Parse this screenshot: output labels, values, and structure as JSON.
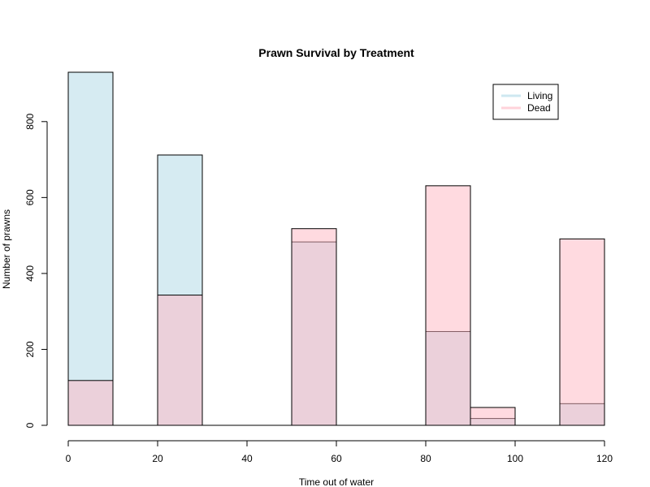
{
  "chart_data": {
    "type": "bar",
    "title": "Prawn Survival by Treatment",
    "xlabel": "Time out of water",
    "ylabel": "Number of prawns",
    "xlim": [
      0,
      120
    ],
    "ylim": [
      0,
      930
    ],
    "x_ticks": [
      0,
      20,
      40,
      60,
      80,
      100,
      120
    ],
    "y_ticks": [
      0,
      200,
      400,
      600,
      800
    ],
    "grid": false,
    "legend_position": "top-right",
    "bin_edges": [
      0,
      10,
      20,
      30,
      40,
      50,
      60,
      70,
      80,
      90,
      100,
      110,
      120
    ],
    "series": [
      {
        "name": "Living",
        "color": "#add8e6",
        "values": [
          930,
          0,
          712,
          0,
          0,
          483,
          0,
          0,
          247,
          18,
          0,
          57
        ]
      },
      {
        "name": "Dead",
        "color": "#ffb6c1",
        "values": [
          118,
          0,
          343,
          0,
          0,
          518,
          0,
          0,
          631,
          47,
          0,
          491
        ]
      }
    ]
  }
}
